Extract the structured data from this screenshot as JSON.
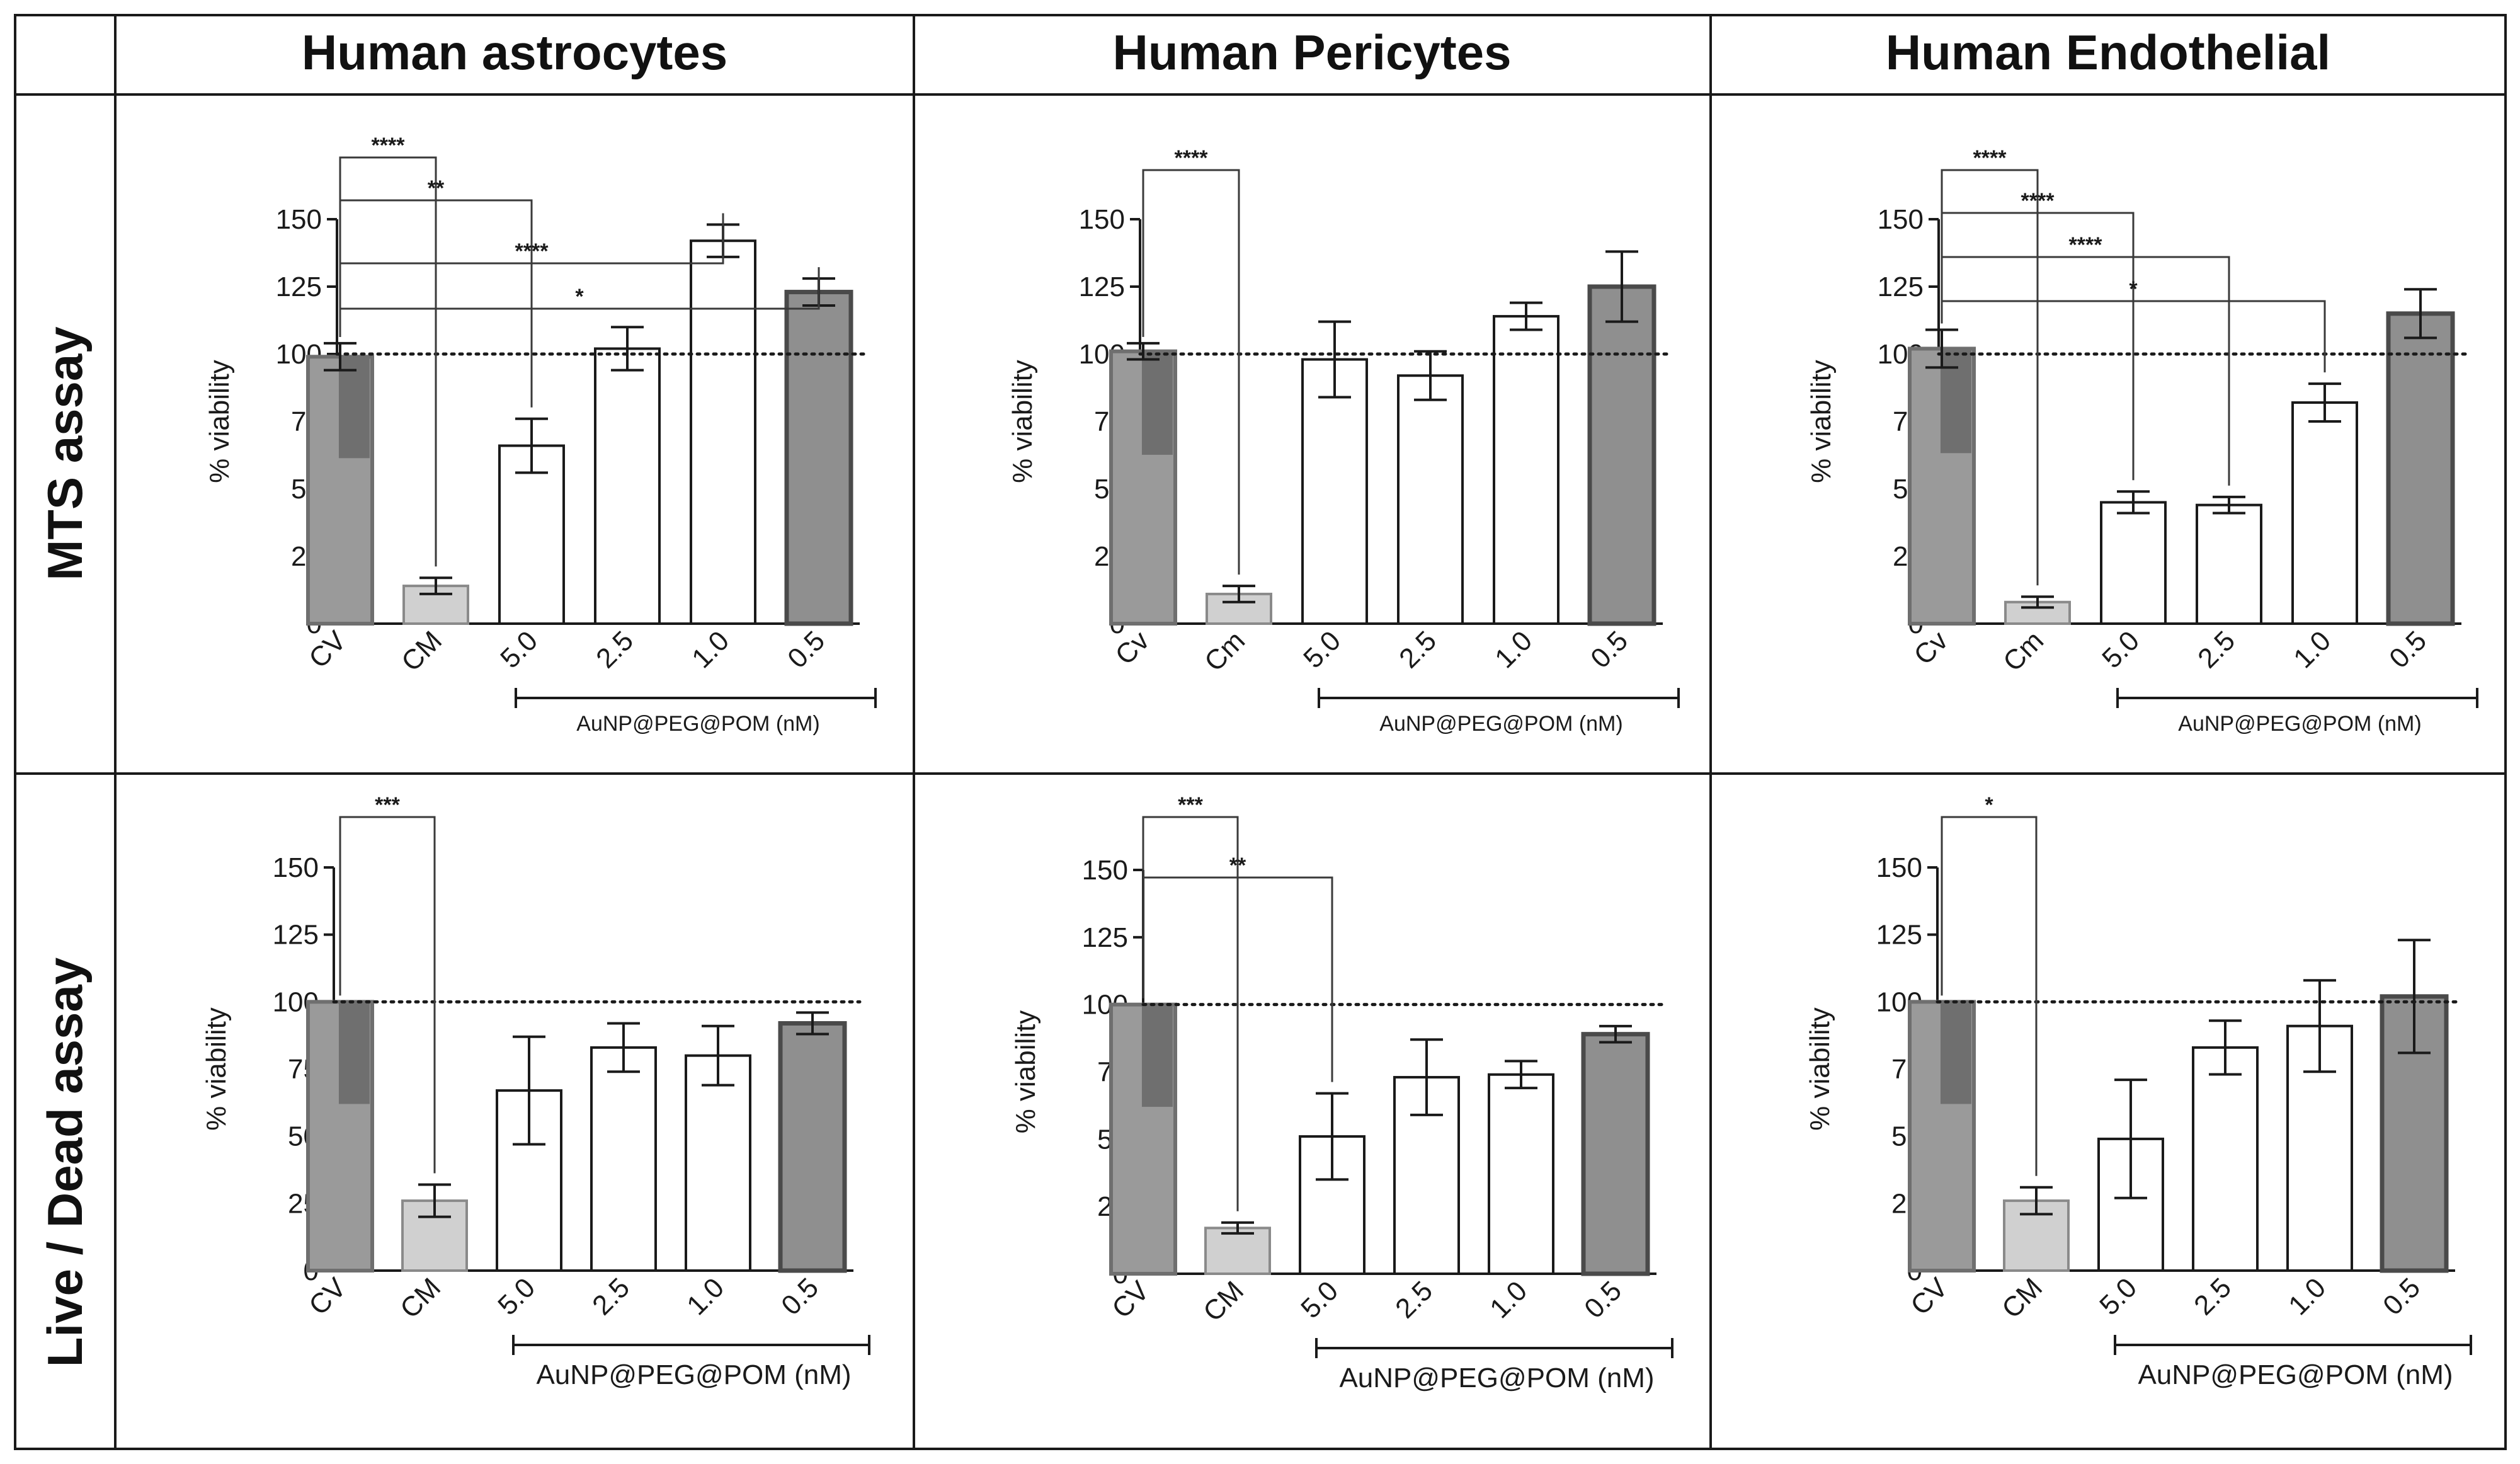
{
  "figure": {
    "column_titles": [
      "Human astrocytes",
      "Human Pericytes",
      "Human Endothelial"
    ],
    "row_titles": [
      "MTS assay",
      "Live / Dead assay"
    ]
  },
  "colors": {
    "control_vehicle": "#9a9a9a",
    "control_vehicle_dark": "#6f6f6f",
    "control_medium": "#d0d0d0",
    "nanoparticle": "#ffffff",
    "lowest_dose": "#8f8f8f",
    "line": "#1a1a1a"
  },
  "chart_data": [
    {
      "type": "bar",
      "panel": "MTS assay - Human astrocytes",
      "categories": [
        "CV",
        "CM",
        "5.0",
        "2.5",
        "1.0",
        "0.5"
      ],
      "values": [
        99,
        14,
        66,
        102,
        142,
        123
      ],
      "errors": [
        5,
        3,
        10,
        8,
        6,
        5
      ],
      "ylabel": "% viability",
      "ylim": [
        0,
        150
      ],
      "yticks": [
        "0",
        "25",
        "50",
        "75",
        "100",
        "125",
        "150"
      ],
      "reference_line": 100,
      "group_label": "AuNP@PEG@POM (nM)",
      "comparisons": [
        {
          "from": "CV",
          "to": "CM",
          "label": "****"
        },
        {
          "from": "CV",
          "to": "5.0",
          "label": "**"
        },
        {
          "from": "CV",
          "to": "1.0",
          "label": "****"
        },
        {
          "from": "CV",
          "to": "0.5",
          "label": "*"
        }
      ]
    },
    {
      "type": "bar",
      "panel": "MTS assay - Human Pericytes",
      "categories": [
        "Cv",
        "Cm",
        "5.0",
        "2.5",
        "1.0",
        "0.5"
      ],
      "values": [
        101,
        11,
        98,
        92,
        114,
        125
      ],
      "errors": [
        3,
        3,
        14,
        9,
        5,
        13
      ],
      "ylabel": "% viability",
      "ylim": [
        0,
        150
      ],
      "yticks": [
        "0",
        "25",
        "50",
        "75",
        "100",
        "125",
        "150"
      ],
      "reference_line": 100,
      "group_label": "AuNP@PEG@POM (nM)",
      "comparisons": [
        {
          "from": "Cv",
          "to": "Cm",
          "label": "****"
        }
      ]
    },
    {
      "type": "bar",
      "panel": "MTS assay - Human Endothelial",
      "categories": [
        "Cv",
        "Cm",
        "5.0",
        "2.5",
        "1.0",
        "0.5"
      ],
      "values": [
        102,
        8,
        45,
        44,
        82,
        115
      ],
      "errors": [
        7,
        2,
        4,
        3,
        7,
        9
      ],
      "ylabel": "% viability",
      "ylim": [
        0,
        150
      ],
      "yticks": [
        "0",
        "25",
        "50",
        "75",
        "100",
        "125",
        "150"
      ],
      "reference_line": 100,
      "group_label": "AuNP@PEG@POM (nM)",
      "comparisons": [
        {
          "from": "Cv",
          "to": "Cm",
          "label": "****"
        },
        {
          "from": "Cv",
          "to": "5.0",
          "label": "****"
        },
        {
          "from": "Cv",
          "to": "2.5",
          "label": "****"
        },
        {
          "from": "Cv",
          "to": "1.0",
          "label": "*"
        }
      ]
    },
    {
      "type": "bar",
      "panel": "Live / Dead assay - Human astrocytes",
      "categories": [
        "CV",
        "CM",
        "5.0",
        "2.5",
        "1.0",
        "0.5"
      ],
      "values": [
        100,
        26,
        67,
        83,
        80,
        92
      ],
      "errors": [
        0,
        6,
        20,
        9,
        11,
        4
      ],
      "ylabel": "% viability",
      "ylim": [
        0,
        150
      ],
      "yticks": [
        "0",
        "25",
        "50",
        "75",
        "100",
        "125",
        "150"
      ],
      "reference_line": 100,
      "group_label": "AuNP@PEG@POM (nM)",
      "comparisons": [
        {
          "from": "CV",
          "to": "CM",
          "label": "***"
        }
      ]
    },
    {
      "type": "bar",
      "panel": "Live / Dead assay - Human Pericytes",
      "categories": [
        "CV",
        "CM",
        "5.0",
        "2.5",
        "1.0",
        "0.5"
      ],
      "values": [
        100,
        17,
        51,
        73,
        74,
        89
      ],
      "errors": [
        0,
        2,
        16,
        14,
        5,
        3
      ],
      "ylabel": "% viability",
      "ylim": [
        0,
        150
      ],
      "yticks": [
        "0",
        "25",
        "50",
        "75",
        "100",
        "125",
        "150"
      ],
      "reference_line": 100,
      "group_label": "AuNP@PEG@POM (nM)",
      "comparisons": [
        {
          "from": "CV",
          "to": "CM",
          "label": "***"
        },
        {
          "from": "CV",
          "to": "5.0",
          "label": "**"
        }
      ]
    },
    {
      "type": "bar",
      "panel": "Live / Dead assay - Human Endothelial",
      "categories": [
        "CV",
        "CM",
        "5.0",
        "2.5",
        "1.0",
        "0.5"
      ],
      "values": [
        100,
        26,
        49,
        83,
        91,
        102
      ],
      "errors": [
        0,
        5,
        22,
        10,
        17,
        21
      ],
      "ylabel": "% viability",
      "ylim": [
        0,
        150
      ],
      "yticks": [
        "0",
        "25",
        "50",
        "75",
        "100",
        "125",
        "150"
      ],
      "reference_line": 100,
      "group_label": "AuNP@PEG@POM (nM)",
      "comparisons": [
        {
          "from": "CV",
          "to": "CM",
          "label": "*"
        }
      ]
    }
  ]
}
